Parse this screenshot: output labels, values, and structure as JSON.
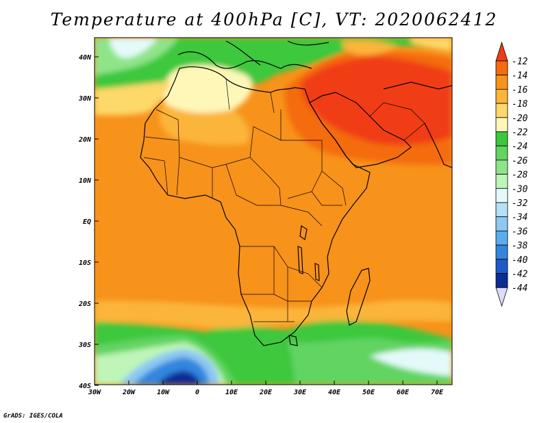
{
  "title": "Temperature at 400hPa [C], VT: 2020062412",
  "credit": "GrADS: IGES/COLA",
  "map": {
    "lon_labels": [
      "30W",
      "20W",
      "10W",
      "0",
      "10E",
      "20E",
      "30E",
      "40E",
      "50E",
      "60E",
      "70E"
    ],
    "lat_labels": [
      "40N",
      "30N",
      "20N",
      "10N",
      "EQ",
      "10S",
      "20S",
      "30S",
      "40S"
    ],
    "lon_range": [
      -30,
      75
    ],
    "lat_range": [
      -40,
      44
    ]
  },
  "colorbar": {
    "levels": [
      "-12",
      "-14",
      "-16",
      "-18",
      "-20",
      "-22",
      "-24",
      "-26",
      "-28",
      "-30",
      "-32",
      "-34",
      "-36",
      "-38",
      "-40",
      "-42",
      "-44"
    ],
    "colors": [
      "#f03c14",
      "#f46c0a",
      "#f7921a",
      "#fbb53a",
      "#fdd86a",
      "#fff7b8",
      "#3cc83c",
      "#62d462",
      "#8fe48a",
      "#bff5b8",
      "#e4fafa",
      "#b4e0f8",
      "#8cc8f2",
      "#5aacec",
      "#3286de",
      "#1e5ac8",
      "#0c2c96",
      "#06166a",
      "#dcdcf8"
    ]
  },
  "legend_icons": {
    "top": "triangle-up-icon",
    "bottom": "triangle-down-icon"
  }
}
